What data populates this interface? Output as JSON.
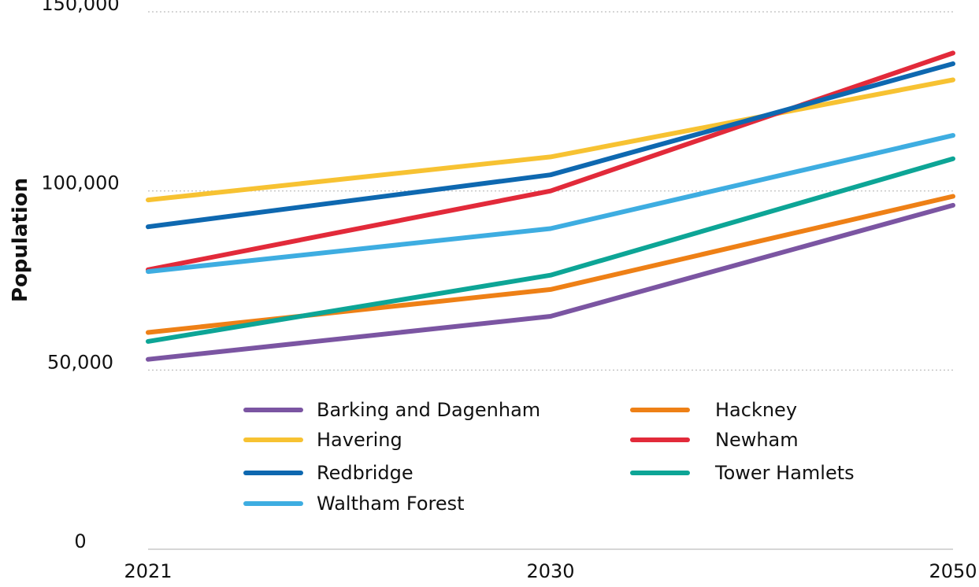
{
  "chart_data": {
    "type": "line",
    "title": "",
    "xlabel": "",
    "ylabel": "Population",
    "x": [
      "2021",
      "2030",
      "2050"
    ],
    "ylim": [
      0,
      150000
    ],
    "yticks": [
      0,
      50000,
      100000,
      150000
    ],
    "ytick_labels": [
      "0",
      "50,000",
      "100,000",
      "150,000"
    ],
    "grid": true,
    "legend_position": "center",
    "series": [
      {
        "name": "Barking and Dagenham",
        "color": "#7B55A2",
        "values": [
          53000,
          65000,
          96000
        ]
      },
      {
        "name": "Hackney",
        "color": "#EE8016",
        "values": [
          60500,
          72500,
          98500
        ]
      },
      {
        "name": "Havering",
        "color": "#F7C232",
        "values": [
          97500,
          109500,
          131000
        ]
      },
      {
        "name": "Newham",
        "color": "#E22A3A",
        "values": [
          78000,
          100000,
          138500
        ]
      },
      {
        "name": "Redbridge",
        "color": "#0E68B0",
        "values": [
          90000,
          104500,
          135500
        ]
      },
      {
        "name": "Tower Hamlets",
        "color": "#0DA596",
        "values": [
          58000,
          76500,
          109000
        ]
      },
      {
        "name": "Waltham Forest",
        "color": "#3EADE1",
        "values": [
          77500,
          89500,
          115500
        ]
      }
    ]
  }
}
